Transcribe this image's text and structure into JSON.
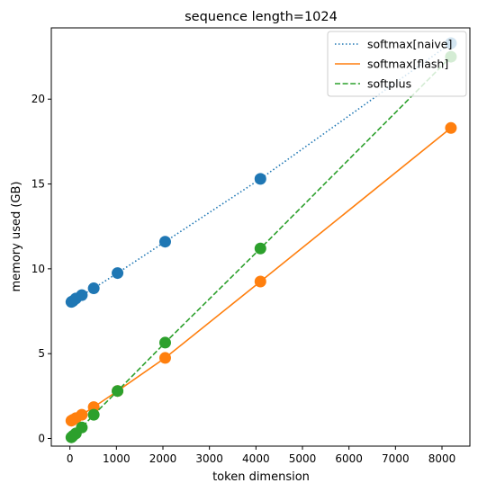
{
  "chart_data": {
    "type": "line",
    "title": "sequence length=1024",
    "xlabel": "token dimension",
    "ylabel": "memory used (GB)",
    "xlim": [
      -400,
      8600
    ],
    "ylim": [
      -0.45,
      24.2
    ],
    "xticks": [
      0,
      1000,
      2000,
      3000,
      4000,
      5000,
      6000,
      7000,
      8000
    ],
    "yticks": [
      0,
      5,
      10,
      15,
      20
    ],
    "grid": false,
    "legend_position": "top-right",
    "series": [
      {
        "name": "softmax[naive]",
        "color": "#1f77b4",
        "linestyle": "dotted",
        "marker": "circle",
        "x": [
          32,
          64,
          128,
          256,
          512,
          1024,
          2048,
          4096,
          8192
        ],
        "y": [
          8.05,
          8.1,
          8.25,
          8.45,
          8.85,
          9.75,
          11.6,
          15.3,
          23.3
        ]
      },
      {
        "name": "softmax[flash]",
        "color": "#ff7f0e",
        "linestyle": "solid",
        "marker": "circle",
        "x": [
          32,
          64,
          128,
          256,
          512,
          1024,
          2048,
          4096,
          8192
        ],
        "y": [
          1.05,
          1.1,
          1.2,
          1.4,
          1.85,
          2.8,
          4.75,
          9.25,
          18.3
        ]
      },
      {
        "name": "softplus",
        "color": "#2ca02c",
        "linestyle": "dashed",
        "marker": "circle",
        "x": [
          32,
          64,
          128,
          256,
          512,
          1024,
          2048,
          4096,
          8192
        ],
        "y": [
          0.07,
          0.15,
          0.3,
          0.65,
          1.4,
          2.8,
          5.65,
          11.2,
          22.5
        ]
      }
    ]
  }
}
